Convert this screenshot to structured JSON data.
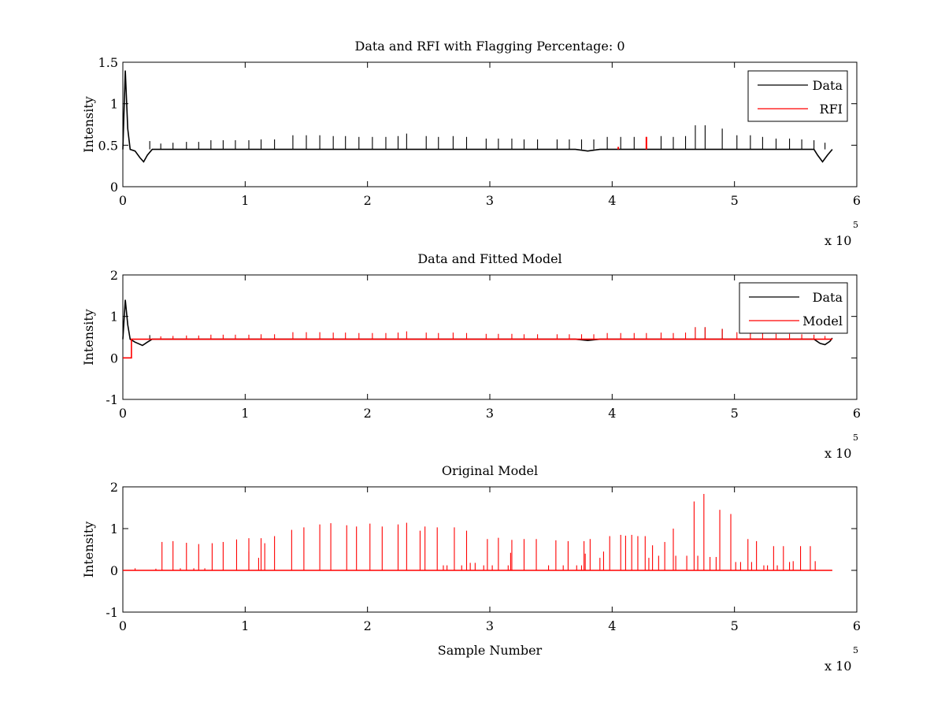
{
  "chart_data": [
    {
      "type": "line",
      "title": "Data and RFI with Flagging Percentage: 0",
      "xlabel": "",
      "ylabel": "Intensity",
      "xlim": [
        0,
        6
      ],
      "ylim": [
        0,
        1.5
      ],
      "x_ticks": [
        "0",
        "1",
        "2",
        "3",
        "4",
        "5",
        "6"
      ],
      "y_ticks": [
        "0",
        "0.5",
        "1",
        "1.5"
      ],
      "x_tick_values": [
        0,
        1,
        2,
        3,
        4,
        5,
        6
      ],
      "y_tick_values": [
        0,
        0.5,
        1,
        1.5
      ],
      "x_multiplier": {
        "base": "x 10",
        "exponent": "5"
      },
      "legend": {
        "position": "top-right",
        "entries": [
          {
            "name": "Data",
            "color": "#000000"
          },
          {
            "name": "RFI",
            "color": "#ff0000"
          }
        ]
      },
      "series": [
        {
          "name": "Data",
          "color": "#000000",
          "baseline": [
            [
              0,
              0.45
            ],
            [
              0.02,
              1.4
            ],
            [
              0.04,
              0.7
            ],
            [
              0.06,
              0.45
            ],
            [
              0.1,
              0.43
            ],
            [
              0.14,
              0.35
            ],
            [
              0.17,
              0.3
            ],
            [
              0.2,
              0.38
            ],
            [
              0.24,
              0.45
            ],
            [
              3.7,
              0.45
            ],
            [
              3.8,
              0.43
            ],
            [
              3.9,
              0.45
            ],
            [
              5.65,
              0.45
            ],
            [
              5.68,
              0.38
            ],
            [
              5.72,
              0.3
            ],
            [
              5.76,
              0.38
            ],
            [
              5.8,
              0.45
            ]
          ],
          "spikes": [
            [
              0.22,
              0.55
            ],
            [
              0.31,
              0.52
            ],
            [
              0.41,
              0.53
            ],
            [
              0.52,
              0.54
            ],
            [
              0.62,
              0.54
            ],
            [
              0.72,
              0.56
            ],
            [
              0.82,
              0.56
            ],
            [
              0.92,
              0.56
            ],
            [
              1.03,
              0.56
            ],
            [
              1.13,
              0.57
            ],
            [
              1.24,
              0.57
            ],
            [
              1.39,
              0.62
            ],
            [
              1.5,
              0.62
            ],
            [
              1.61,
              0.62
            ],
            [
              1.72,
              0.61
            ],
            [
              1.82,
              0.61
            ],
            [
              1.93,
              0.6
            ],
            [
              2.04,
              0.6
            ],
            [
              2.15,
              0.6
            ],
            [
              2.25,
              0.61
            ],
            [
              2.32,
              0.64
            ],
            [
              2.48,
              0.61
            ],
            [
              2.58,
              0.6
            ],
            [
              2.7,
              0.61
            ],
            [
              2.81,
              0.6
            ],
            [
              2.97,
              0.58
            ],
            [
              3.07,
              0.58
            ],
            [
              3.18,
              0.58
            ],
            [
              3.28,
              0.57
            ],
            [
              3.39,
              0.57
            ],
            [
              3.55,
              0.57
            ],
            [
              3.65,
              0.57
            ],
            [
              3.75,
              0.57
            ],
            [
              3.85,
              0.57
            ],
            [
              3.96,
              0.6
            ],
            [
              4.07,
              0.6
            ],
            [
              4.18,
              0.6
            ],
            [
              4.28,
              0.6
            ],
            [
              4.4,
              0.61
            ],
            [
              4.5,
              0.6
            ],
            [
              4.6,
              0.61
            ],
            [
              4.68,
              0.74
            ],
            [
              4.76,
              0.74
            ],
            [
              4.9,
              0.7
            ],
            [
              5.02,
              0.62
            ],
            [
              5.13,
              0.62
            ],
            [
              5.23,
              0.6
            ],
            [
              5.34,
              0.58
            ],
            [
              5.45,
              0.58
            ],
            [
              5.55,
              0.57
            ],
            [
              5.65,
              0.56
            ],
            [
              5.74,
              0.53
            ]
          ]
        },
        {
          "name": "RFI",
          "color": "#ff0000",
          "points": [
            [
              4.05,
              0.48
            ],
            [
              4.28,
              0.6
            ]
          ]
        }
      ]
    },
    {
      "type": "line",
      "title": "Data and Fitted Model",
      "xlabel": "",
      "ylabel": "Intensity",
      "xlim": [
        0,
        6
      ],
      "ylim": [
        -1,
        2
      ],
      "x_ticks": [
        "0",
        "1",
        "2",
        "3",
        "4",
        "5",
        "6"
      ],
      "y_ticks": [
        "-1",
        "0",
        "1",
        "2"
      ],
      "x_tick_values": [
        0,
        1,
        2,
        3,
        4,
        5,
        6
      ],
      "y_tick_values": [
        -1,
        0,
        1,
        2
      ],
      "x_multiplier": {
        "base": "x 10",
        "exponent": "5"
      },
      "legend": {
        "position": "top-right",
        "entries": [
          {
            "name": "Data",
            "color": "#000000"
          },
          {
            "name": "Model",
            "color": "#ff0000"
          }
        ]
      },
      "series": [
        {
          "name": "Data",
          "color": "#000000",
          "baseline": [
            [
              0,
              0.45
            ],
            [
              0.02,
              1.4
            ],
            [
              0.04,
              0.8
            ],
            [
              0.06,
              0.45
            ],
            [
              0.1,
              0.38
            ],
            [
              0.16,
              0.3
            ],
            [
              0.2,
              0.38
            ],
            [
              0.24,
              0.45
            ],
            [
              3.7,
              0.45
            ],
            [
              3.8,
              0.42
            ],
            [
              3.9,
              0.45
            ],
            [
              5.65,
              0.45
            ],
            [
              5.7,
              0.35
            ],
            [
              5.74,
              0.32
            ],
            [
              5.78,
              0.4
            ],
            [
              5.8,
              0.48
            ]
          ],
          "spikes": [
            [
              0.22,
              0.55
            ],
            [
              4.68,
              0.74
            ],
            [
              4.76,
              0.74
            ],
            [
              4.9,
              0.7
            ]
          ]
        },
        {
          "name": "Model",
          "color": "#ff0000",
          "baseline": [
            [
              0,
              0.0
            ],
            [
              0.07,
              0.0
            ],
            [
              0.07,
              0.45
            ],
            [
              5.8,
              0.45
            ]
          ],
          "spikes": [
            [
              0.31,
              0.52
            ],
            [
              0.41,
              0.53
            ],
            [
              0.52,
              0.54
            ],
            [
              0.62,
              0.54
            ],
            [
              0.72,
              0.56
            ],
            [
              0.82,
              0.56
            ],
            [
              0.92,
              0.56
            ],
            [
              1.03,
              0.56
            ],
            [
              1.13,
              0.57
            ],
            [
              1.24,
              0.57
            ],
            [
              1.39,
              0.62
            ],
            [
              1.5,
              0.62
            ],
            [
              1.61,
              0.62
            ],
            [
              1.72,
              0.61
            ],
            [
              1.82,
              0.61
            ],
            [
              1.93,
              0.6
            ],
            [
              2.04,
              0.6
            ],
            [
              2.15,
              0.6
            ],
            [
              2.25,
              0.61
            ],
            [
              2.32,
              0.64
            ],
            [
              2.48,
              0.61
            ],
            [
              2.58,
              0.6
            ],
            [
              2.7,
              0.61
            ],
            [
              2.81,
              0.6
            ],
            [
              2.97,
              0.58
            ],
            [
              3.07,
              0.58
            ],
            [
              3.18,
              0.58
            ],
            [
              3.28,
              0.57
            ],
            [
              3.39,
              0.57
            ],
            [
              3.55,
              0.57
            ],
            [
              3.65,
              0.57
            ],
            [
              3.75,
              0.57
            ],
            [
              3.85,
              0.57
            ],
            [
              3.96,
              0.6
            ],
            [
              4.07,
              0.6
            ],
            [
              4.18,
              0.6
            ],
            [
              4.28,
              0.6
            ],
            [
              4.4,
              0.61
            ],
            [
              4.5,
              0.6
            ],
            [
              4.6,
              0.61
            ],
            [
              4.68,
              0.74
            ],
            [
              4.76,
              0.74
            ],
            [
              4.9,
              0.7
            ],
            [
              5.02,
              0.62
            ],
            [
              5.13,
              0.62
            ],
            [
              5.23,
              0.6
            ],
            [
              5.34,
              0.58
            ],
            [
              5.45,
              0.58
            ],
            [
              5.55,
              0.57
            ],
            [
              5.65,
              0.56
            ],
            [
              5.74,
              0.53
            ]
          ]
        }
      ]
    },
    {
      "type": "line",
      "title": "Original Model",
      "xlabel": "Sample Number",
      "ylabel": "Intensity",
      "xlim": [
        0,
        6
      ],
      "ylim": [
        -1,
        2
      ],
      "x_ticks": [
        "0",
        "1",
        "2",
        "3",
        "4",
        "5",
        "6"
      ],
      "y_ticks": [
        "-1",
        "0",
        "1",
        "2"
      ],
      "x_tick_values": [
        0,
        1,
        2,
        3,
        4,
        5,
        6
      ],
      "y_tick_values": [
        -1,
        0,
        1,
        2
      ],
      "x_multiplier": {
        "base": "x 10",
        "exponent": "5"
      },
      "legend": null,
      "series": [
        {
          "name": "",
          "color": "#ff0000",
          "baseline": [
            [
              0,
              0.0
            ],
            [
              5.8,
              0.0
            ]
          ],
          "spikes": [
            [
              0.1,
              0.05
            ],
            [
              0.27,
              0.04
            ],
            [
              0.32,
              0.68
            ],
            [
              0.41,
              0.7
            ],
            [
              0.47,
              0.05
            ],
            [
              0.52,
              0.66
            ],
            [
              0.58,
              0.05
            ],
            [
              0.62,
              0.63
            ],
            [
              0.67,
              0.05
            ],
            [
              0.73,
              0.65
            ],
            [
              0.82,
              0.68
            ],
            [
              0.93,
              0.74
            ],
            [
              1.03,
              0.77
            ],
            [
              1.03,
              0.45
            ],
            [
              1.11,
              0.3
            ],
            [
              1.13,
              0.77
            ],
            [
              1.16,
              0.65
            ],
            [
              1.24,
              0.82
            ],
            [
              1.38,
              0.97
            ],
            [
              1.48,
              1.03
            ],
            [
              1.61,
              1.1
            ],
            [
              1.7,
              1.13
            ],
            [
              1.83,
              1.08
            ],
            [
              1.91,
              1.05
            ],
            [
              2.02,
              1.12
            ],
            [
              2.12,
              1.05
            ],
            [
              2.25,
              1.1
            ],
            [
              2.32,
              1.14
            ],
            [
              2.43,
              0.95
            ],
            [
              2.47,
              1.05
            ],
            [
              2.57,
              1.03
            ],
            [
              2.62,
              0.12
            ],
            [
              2.65,
              0.12
            ],
            [
              2.71,
              1.03
            ],
            [
              2.77,
              0.12
            ],
            [
              2.81,
              0.95
            ],
            [
              2.84,
              0.18
            ],
            [
              2.88,
              0.18
            ],
            [
              2.95,
              0.12
            ],
            [
              2.98,
              0.75
            ],
            [
              3.02,
              0.12
            ],
            [
              3.07,
              0.78
            ],
            [
              3.15,
              0.12
            ],
            [
              3.17,
              0.42
            ],
            [
              3.18,
              0.73
            ],
            [
              3.28,
              0.75
            ],
            [
              3.38,
              0.75
            ],
            [
              3.48,
              0.12
            ],
            [
              3.54,
              0.72
            ],
            [
              3.6,
              0.12
            ],
            [
              3.64,
              0.7
            ],
            [
              3.71,
              0.12
            ],
            [
              3.75,
              0.12
            ],
            [
              3.77,
              0.7
            ],
            [
              3.78,
              0.4
            ],
            [
              3.82,
              0.75
            ],
            [
              3.9,
              0.3
            ],
            [
              3.93,
              0.45
            ],
            [
              3.98,
              0.82
            ],
            [
              4.07,
              0.85
            ],
            [
              4.11,
              0.83
            ],
            [
              4.16,
              0.85
            ],
            [
              4.21,
              0.82
            ],
            [
              4.27,
              0.82
            ],
            [
              4.3,
              0.3
            ],
            [
              4.33,
              0.6
            ],
            [
              4.38,
              0.35
            ],
            [
              4.43,
              0.68
            ],
            [
              4.52,
              0.35
            ],
            [
              4.5,
              1.0
            ],
            [
              4.61,
              0.35
            ],
            [
              4.67,
              1.65
            ],
            [
              4.7,
              0.35
            ],
            [
              4.75,
              1.83
            ],
            [
              4.8,
              0.32
            ],
            [
              4.85,
              0.32
            ],
            [
              4.88,
              1.45
            ],
            [
              4.97,
              1.35
            ],
            [
              5.01,
              0.2
            ],
            [
              5.05,
              0.2
            ],
            [
              5.11,
              0.75
            ],
            [
              5.14,
              0.2
            ],
            [
              5.18,
              0.7
            ],
            [
              5.24,
              0.12
            ],
            [
              5.27,
              0.12
            ],
            [
              5.32,
              0.58
            ],
            [
              5.35,
              0.12
            ],
            [
              5.4,
              0.58
            ],
            [
              5.45,
              0.2
            ],
            [
              5.48,
              0.22
            ],
            [
              5.54,
              0.58
            ],
            [
              5.62,
              0.58
            ],
            [
              5.66,
              0.22
            ]
          ]
        }
      ]
    }
  ]
}
